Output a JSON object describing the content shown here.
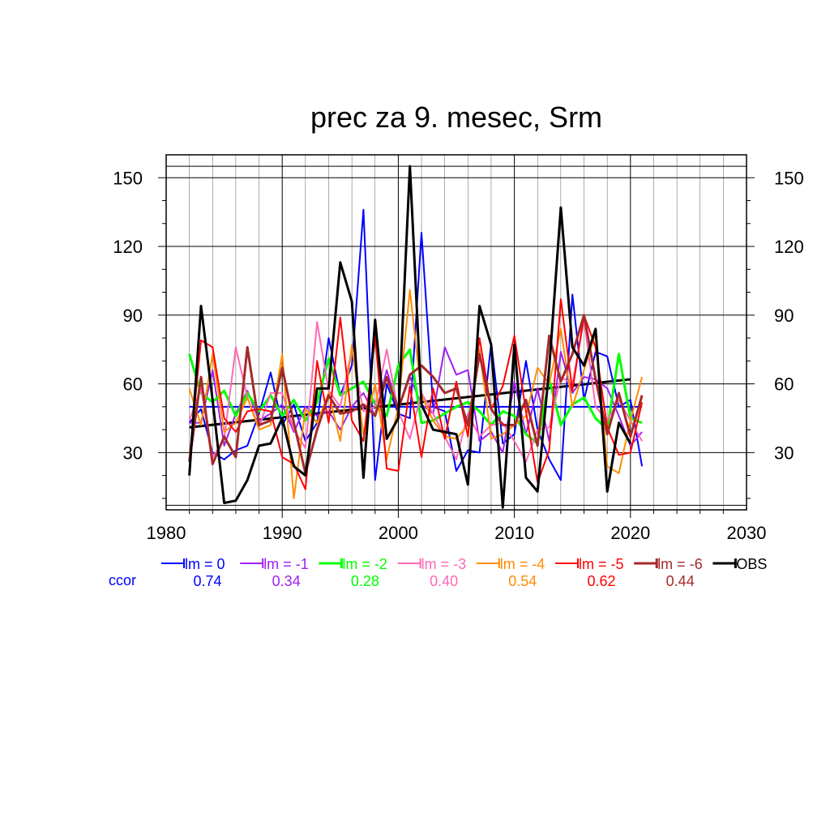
{
  "chart_data": {
    "type": "line",
    "title": "prec za 9. mesec, Srm",
    "xlim": [
      1980,
      2030
    ],
    "ylim": [
      5,
      160
    ],
    "xticks": [
      1980,
      1990,
      2000,
      2010,
      2020,
      2030
    ],
    "yticks": [
      30,
      60,
      90,
      120,
      150
    ],
    "grid": true,
    "legend_placement": "bottom",
    "ccor_label": "ccor",
    "x": [
      1982,
      1983,
      1984,
      1985,
      1986,
      1987,
      1988,
      1989,
      1990,
      1991,
      1992,
      1993,
      1994,
      1995,
      1996,
      1997,
      1998,
      1999,
      2000,
      2001,
      2002,
      2003,
      2004,
      2005,
      2006,
      2007,
      2008,
      2009,
      2010,
      2011,
      2012,
      2013,
      2014,
      2015,
      2016,
      2017,
      2018,
      2019,
      2020,
      2021
    ],
    "series": [
      {
        "name": "lm = 0",
        "ccor": "0.74",
        "color": "#0000ff",
        "width": 2,
        "values": [
          43,
          49,
          30,
          27,
          31,
          33,
          47,
          65,
          42,
          51,
          35,
          43,
          80,
          55,
          68,
          136,
          18,
          60,
          47,
          45,
          126,
          50,
          48,
          22,
          31,
          30,
          78,
          34,
          38,
          70,
          40,
          27,
          18,
          99,
          53,
          74,
          72,
          50,
          53,
          24
        ]
      },
      {
        "name": "lm = -1",
        "ccor": "0.34",
        "color": "#a020f0",
        "width": 2,
        "values": [
          43,
          43,
          66,
          33,
          47,
          57,
          44,
          47,
          51,
          39,
          50,
          46,
          48,
          40,
          50,
          56,
          46,
          66,
          49,
          63,
          51,
          47,
          76,
          64,
          66,
          35,
          39,
          30,
          61,
          38,
          58,
          35,
          74,
          56,
          63,
          62,
          58,
          46,
          33,
          39
        ]
      },
      {
        "name": "lm = -2",
        "ccor": "0.28",
        "color": "#00ff00",
        "width": 3,
        "values": [
          73,
          56,
          52,
          57,
          46,
          56,
          48,
          55,
          46,
          53,
          44,
          52,
          71,
          55,
          58,
          61,
          51,
          46,
          68,
          75,
          43,
          44,
          47,
          50,
          52,
          48,
          42,
          48,
          46,
          38,
          34,
          62,
          42,
          51,
          54,
          45,
          40,
          73,
          45,
          43
        ]
      },
      {
        "name": "lm = -3",
        "ccor": "0.40",
        "color": "#ff69b4",
        "width": 2,
        "values": [
          44,
          58,
          28,
          36,
          76,
          54,
          41,
          56,
          56,
          40,
          32,
          87,
          57,
          50,
          75,
          48,
          50,
          75,
          48,
          36,
          56,
          47,
          37,
          27,
          47,
          37,
          42,
          43,
          35,
          26,
          40,
          41,
          63,
          60,
          88,
          50,
          44,
          53,
          44,
          35
        ]
      },
      {
        "name": "lm = -4",
        "ccor": "0.54",
        "color": "#ff8c00",
        "width": 2,
        "values": [
          58,
          42,
          73,
          39,
          43,
          54,
          40,
          42,
          73,
          10,
          49,
          43,
          56,
          35,
          77,
          38,
          60,
          27,
          50,
          101,
          55,
          44,
          37,
          36,
          42,
          75,
          36,
          38,
          42,
          46,
          67,
          60,
          84,
          50,
          66,
          82,
          24,
          21,
          44,
          63
        ]
      },
      {
        "name": "lm = -5",
        "ccor": "0.62",
        "color": "#ff0000",
        "width": 2,
        "values": [
          27,
          79,
          76,
          45,
          39,
          48,
          49,
          48,
          28,
          25,
          14,
          70,
          43,
          89,
          44,
          35,
          81,
          23,
          22,
          59,
          28,
          58,
          36,
          61,
          37,
          80,
          49,
          59,
          81,
          48,
          17,
          31,
          97,
          57,
          90,
          76,
          41,
          29,
          30,
          52
        ]
      },
      {
        "name": "lm = -6",
        "ccor": "0.44",
        "color": "#a52a2a",
        "width": 3,
        "values": [
          26,
          63,
          25,
          37,
          28,
          76,
          42,
          44,
          67,
          43,
          21,
          40,
          55,
          47,
          48,
          51,
          46,
          63,
          49,
          64,
          68,
          63,
          56,
          58,
          42,
          73,
          49,
          42,
          42,
          53,
          33,
          81,
          61,
          73,
          90,
          62,
          38,
          56,
          37,
          55
        ]
      },
      {
        "name": "OBS",
        "ccor": "",
        "color": "#000000",
        "width": 3,
        "values": [
          20,
          94,
          53,
          8,
          9,
          18,
          33,
          34,
          45,
          24,
          20,
          58,
          58,
          113,
          96,
          19,
          88,
          36,
          45,
          155,
          51,
          40,
          39,
          38,
          16,
          94,
          77,
          6,
          77,
          19,
          13,
          67,
          137,
          76,
          68,
          84,
          13,
          43,
          34,
          null
        ]
      }
    ],
    "reference_lines": [
      {
        "kind": "mean",
        "series": "lm = 0",
        "color": "#0000ff",
        "x": [
          1982,
          2021
        ],
        "y": [
          50,
          50
        ]
      },
      {
        "kind": "trend",
        "series": "OBS",
        "color": "#000000",
        "x": [
          1982,
          2020
        ],
        "y": [
          41,
          62
        ]
      }
    ]
  }
}
